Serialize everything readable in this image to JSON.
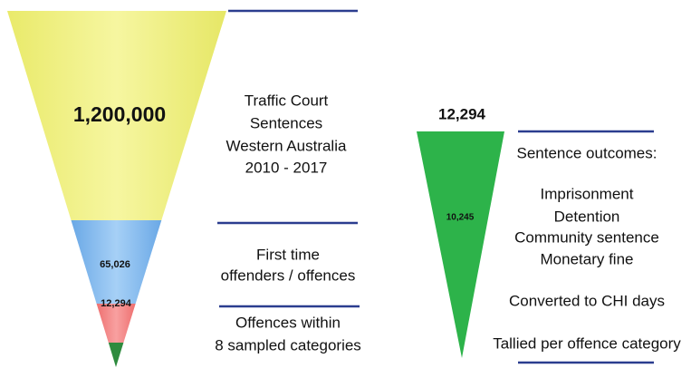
{
  "funnel": {
    "segments": [
      {
        "label": "1,200,000"
      },
      {
        "label": "65,026"
      },
      {
        "label": "12,294"
      }
    ],
    "captions": [
      [
        "Traffic Court",
        "Sentences",
        "Western Australia",
        "2010 - 2017"
      ],
      [
        "First time",
        "offenders / offences"
      ],
      [
        "Offences within",
        "8 sampled categories"
      ]
    ]
  },
  "outcomes": {
    "total": "12,294",
    "inner": "10,245",
    "heading": "Sentence outcomes:",
    "items": [
      "Imprisonment",
      "Detention",
      "Community sentence",
      "Monetary fine"
    ],
    "converted": "Converted to CHI days",
    "tallied": "Tallied per offence category"
  }
}
